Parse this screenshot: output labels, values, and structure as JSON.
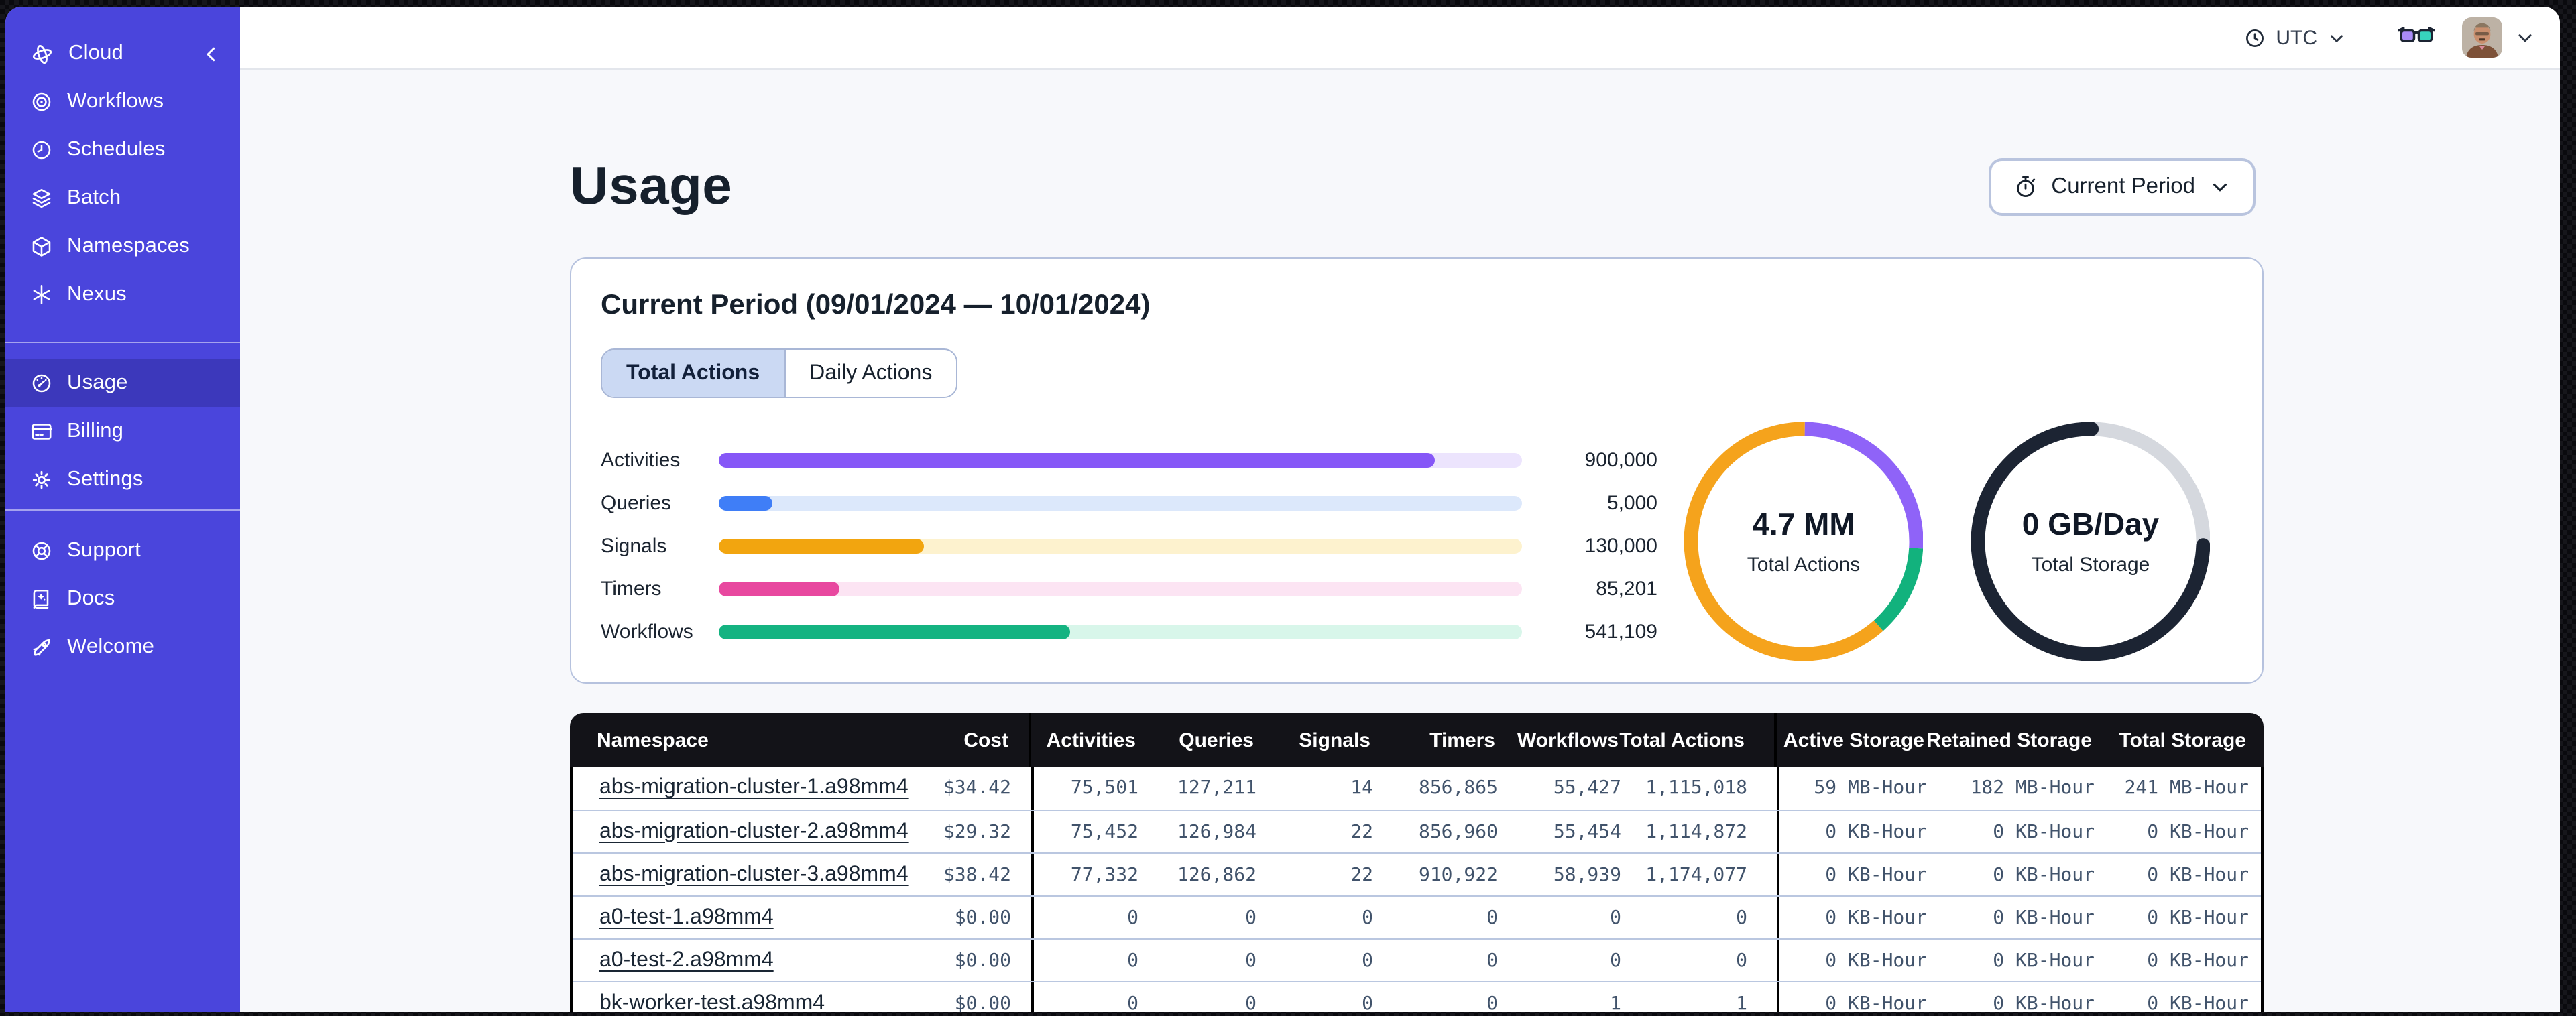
{
  "sidebar": {
    "brand": {
      "label": "Cloud"
    },
    "nav_top": [
      {
        "label": "Workflows",
        "icon": "workflows-icon"
      },
      {
        "label": "Schedules",
        "icon": "schedules-icon"
      },
      {
        "label": "Batch",
        "icon": "batch-icon"
      },
      {
        "label": "Namespaces",
        "icon": "namespaces-icon"
      },
      {
        "label": "Nexus",
        "icon": "nexus-icon"
      }
    ],
    "nav_account": [
      {
        "label": "Usage",
        "icon": "usage-icon",
        "active": true
      },
      {
        "label": "Billing",
        "icon": "billing-icon"
      },
      {
        "label": "Settings",
        "icon": "settings-icon"
      }
    ],
    "nav_bottom": [
      {
        "label": "Support",
        "icon": "support-icon"
      },
      {
        "label": "Docs",
        "icon": "docs-icon"
      },
      {
        "label": "Welcome",
        "icon": "welcome-icon"
      }
    ]
  },
  "header": {
    "timezone": "UTC"
  },
  "page": {
    "title": "Usage",
    "period_button_label": "Current Period"
  },
  "usage_card": {
    "title": "Current Period (09/01/2024 — 10/01/2024)",
    "tabs": [
      {
        "label": "Total Actions",
        "active": true
      },
      {
        "label": "Daily Actions",
        "active": false
      }
    ]
  },
  "chart_data": [
    {
      "type": "bar",
      "orientation": "horizontal",
      "categories": [
        "Activities",
        "Queries",
        "Signals",
        "Timers",
        "Workflows"
      ],
      "values": [
        900000,
        5000,
        130000,
        85201,
        541109
      ],
      "display_values": [
        "900,000",
        "5,000",
        "130,000",
        "85,201",
        "541,109"
      ],
      "fill_fractions": [
        0.891,
        0.066,
        0.256,
        0.151,
        0.437
      ],
      "colors": [
        "#8657f7",
        "#3f7ef7",
        "#f2a50f",
        "#e8489f",
        "#14b381"
      ],
      "track_colors": [
        "#ece4fd",
        "#dce8fb",
        "#fdf2ce",
        "#fce4f3",
        "#d8f6ea"
      ],
      "title": "",
      "xlabel": "",
      "ylabel": ""
    },
    {
      "type": "pie",
      "subtype": "donut",
      "center_label": "4.7 MM",
      "center_sublabel": "Total Actions",
      "segments": [
        {
          "color": "#8f63f8",
          "fraction": 0.257,
          "cap": "butt"
        },
        {
          "color": "#12b27d",
          "fraction": 0.125,
          "cap": "butt"
        },
        {
          "color": "#f5a31c",
          "fraction": 0.618,
          "cap": "butt"
        }
      ]
    },
    {
      "type": "pie",
      "subtype": "donut",
      "center_label": "0 GB/Day",
      "center_sublabel": "Total Storage",
      "segments": [
        {
          "color": "#d5d8de",
          "fraction": 0.253,
          "cap": "butt"
        },
        {
          "color": "#1c2433",
          "fraction": 0.747,
          "cap": "round"
        }
      ]
    }
  ],
  "table": {
    "headers": [
      "Namespace",
      "Cost",
      "Activities",
      "Queries",
      "Signals",
      "Timers",
      "Workflows",
      "Total Actions",
      "Active Storage",
      "Retained Storage",
      "Total Storage"
    ],
    "rows": [
      [
        "abs-migration-cluster-1.a98mm4",
        "$34.42",
        "75,501",
        "127,211",
        "14",
        "856,865",
        "55,427",
        "1,115,018",
        "59 MB-Hour",
        "182 MB-Hour",
        "241 MB-Hour"
      ],
      [
        "abs-migration-cluster-2.a98mm4",
        "$29.32",
        "75,452",
        "126,984",
        "22",
        "856,960",
        "55,454",
        "1,114,872",
        "0 KB-Hour",
        "0 KB-Hour",
        "0 KB-Hour"
      ],
      [
        "abs-migration-cluster-3.a98mm4",
        "$38.42",
        "77,332",
        "126,862",
        "22",
        "910,922",
        "58,939",
        "1,174,077",
        "0 KB-Hour",
        "0 KB-Hour",
        "0 KB-Hour"
      ],
      [
        "a0-test-1.a98mm4",
        "$0.00",
        "0",
        "0",
        "0",
        "0",
        "0",
        "0",
        "0 KB-Hour",
        "0 KB-Hour",
        "0 KB-Hour"
      ],
      [
        "a0-test-2.a98mm4",
        "$0.00",
        "0",
        "0",
        "0",
        "0",
        "0",
        "0",
        "0 KB-Hour",
        "0 KB-Hour",
        "0 KB-Hour"
      ],
      [
        "bk-worker-test.a98mm4",
        "$0.00",
        "0",
        "0",
        "0",
        "0",
        "1",
        "1",
        "0 KB-Hour",
        "0 KB-Hour",
        "0 KB-Hour"
      ]
    ]
  }
}
